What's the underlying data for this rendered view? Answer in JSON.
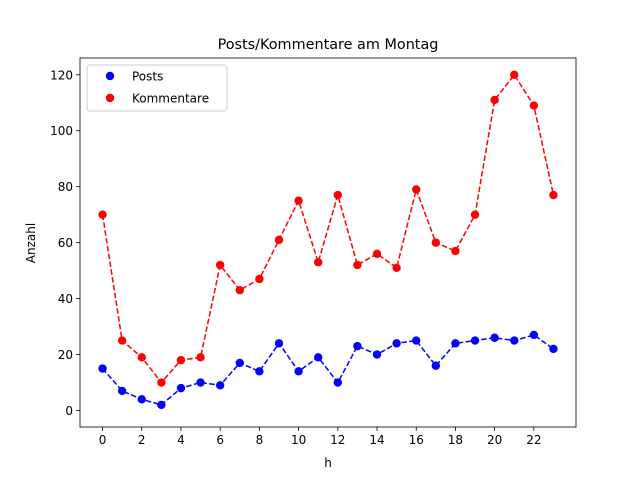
{
  "chart_data": {
    "type": "line",
    "title": "Posts/Kommentare am Montag",
    "xlabel": "h",
    "ylabel": "Anzahl",
    "xlim": [
      -1.15,
      24.15
    ],
    "ylim": [
      -5.9,
      126.0
    ],
    "xticks": [
      0,
      2,
      4,
      6,
      8,
      10,
      12,
      14,
      16,
      18,
      20,
      22
    ],
    "yticks": [
      0,
      20,
      40,
      60,
      80,
      100,
      120
    ],
    "grid": false,
    "legend_position": "top-left",
    "x": [
      0,
      1,
      2,
      3,
      4,
      5,
      6,
      7,
      8,
      9,
      10,
      11,
      12,
      13,
      14,
      15,
      16,
      17,
      18,
      19,
      20,
      21,
      22,
      23
    ],
    "series": [
      {
        "name": "Posts",
        "color": "#0000ff",
        "values": [
          15,
          7,
          4,
          2,
          8,
          10,
          9,
          17,
          14,
          24,
          14,
          19,
          10,
          23,
          20,
          24,
          25,
          16,
          24,
          25,
          26,
          25,
          27,
          22
        ]
      },
      {
        "name": "Kommentare",
        "color": "#ff0000",
        "values": [
          70,
          25,
          19,
          10,
          18,
          19,
          52,
          43,
          47,
          61,
          75,
          53,
          77,
          52,
          56,
          51,
          79,
          60,
          57,
          70,
          111,
          120,
          109,
          77
        ]
      }
    ]
  }
}
